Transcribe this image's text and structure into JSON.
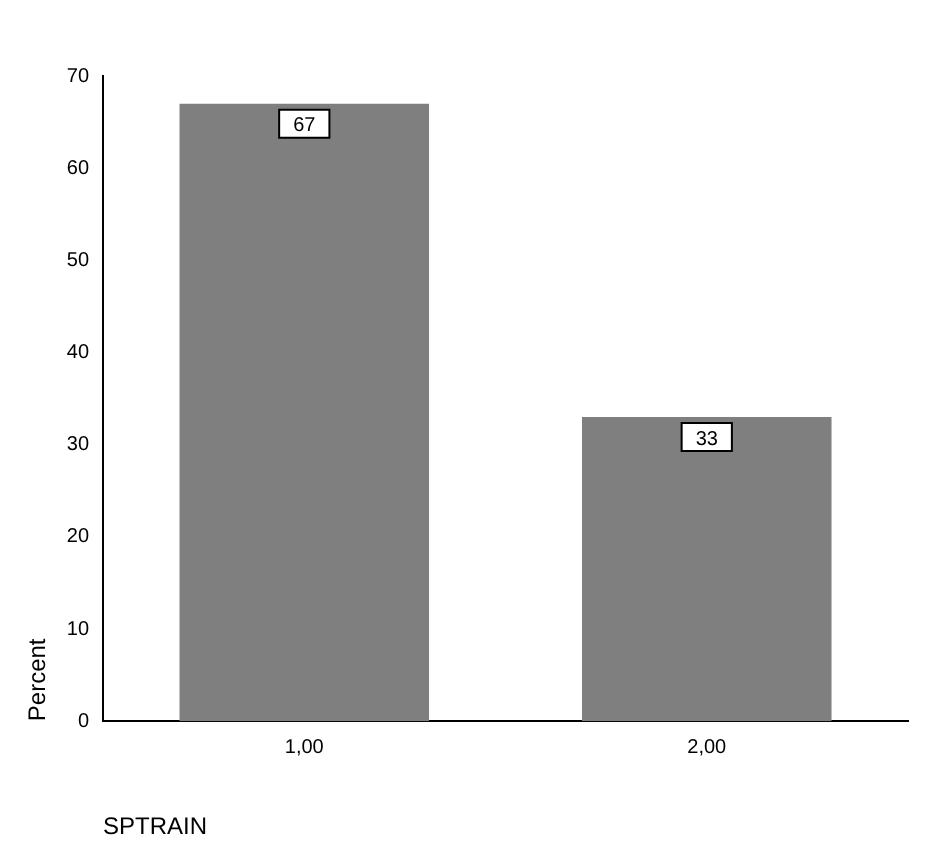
{
  "chart_data": {
    "type": "bar",
    "xlabel": "SPTRAIN",
    "ylabel": "Percent",
    "categories": [
      "1,00",
      "2,00"
    ],
    "values": [
      67,
      33
    ],
    "color": "#7f7f7f",
    "ylim": [
      0,
      70
    ],
    "yticks": [
      0,
      10,
      20,
      30,
      40,
      50,
      60,
      70
    ],
    "data_labels": true,
    "grid": false,
    "legend": false
  }
}
